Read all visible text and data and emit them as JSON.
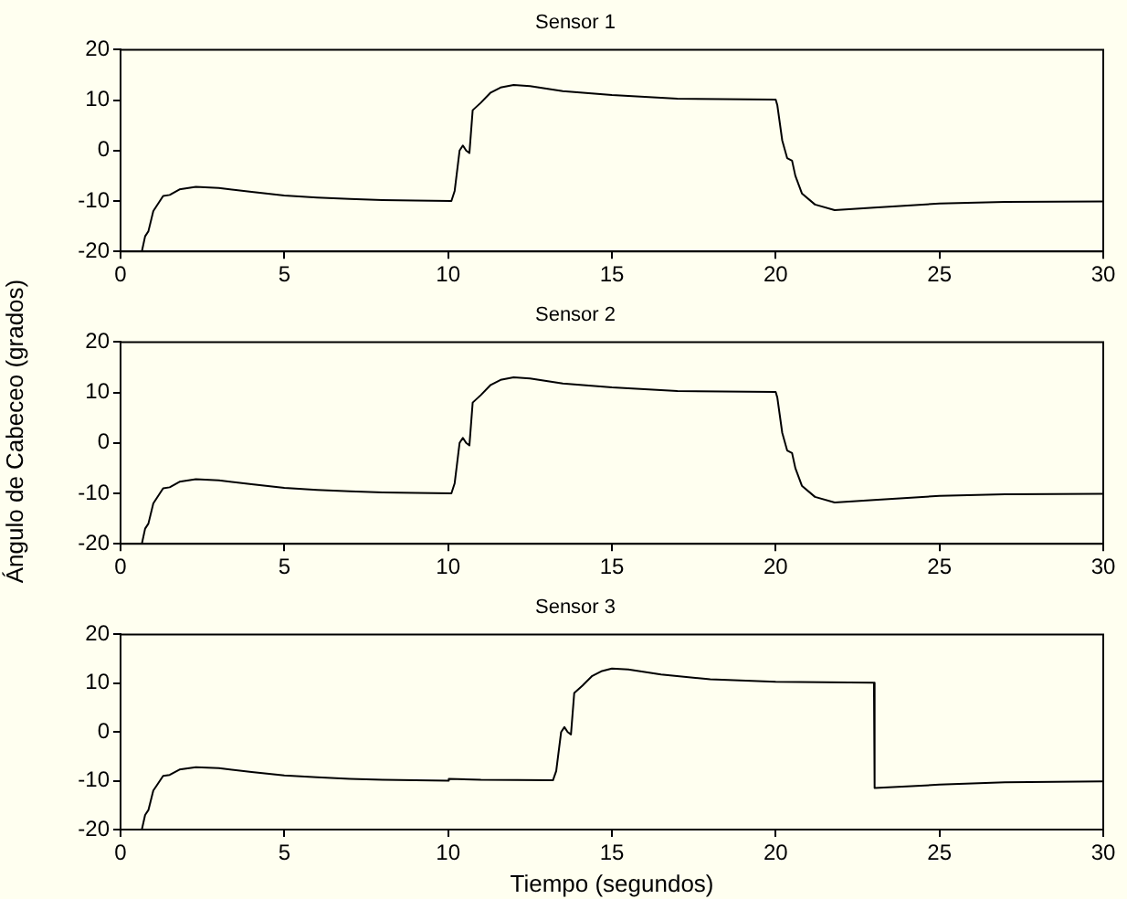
{
  "chart_data": [
    {
      "type": "line",
      "title": "Sensor 1",
      "xlim": [
        0,
        30
      ],
      "xticks": [
        0,
        5,
        10,
        15,
        20,
        25,
        30
      ],
      "ylim": [
        -20,
        20
      ],
      "yticks": [
        -20,
        -10,
        0,
        10,
        20
      ],
      "grid": false,
      "legend": false,
      "marker": "none",
      "line_style": "solid",
      "series": [
        {
          "color": "#000000",
          "x": [
            0.65,
            0.75,
            0.85,
            1.0,
            1.1,
            1.3,
            1.5,
            1.8,
            2.3,
            3,
            4,
            5,
            6,
            7,
            8,
            9,
            10.1,
            10.2,
            10.35,
            10.45,
            10.55,
            10.65,
            10.75,
            11,
            11.3,
            11.6,
            12,
            12.5,
            13.5,
            15,
            17,
            20,
            20.05,
            20.2,
            20.35,
            20.5,
            20.6,
            20.8,
            21.2,
            21.8,
            23,
            25,
            27,
            30
          ],
          "values": [
            -20,
            -17,
            -16,
            -12,
            -11,
            -9,
            -8.8,
            -7.7,
            -7.2,
            -7.4,
            -8.2,
            -8.9,
            -9.3,
            -9.6,
            -9.8,
            -9.9,
            -10,
            -8,
            0,
            1,
            0,
            -0.5,
            8,
            9.5,
            11.5,
            12.5,
            13,
            12.8,
            11.8,
            11,
            10.3,
            10.1,
            9,
            2,
            -1.5,
            -2,
            -5,
            -8.5,
            -10.7,
            -11.8,
            -11.3,
            -10.5,
            -10.2,
            -10.1
          ]
        }
      ]
    },
    {
      "type": "line",
      "title": "Sensor 2",
      "ylabel": "Ángulo de Cabeceo (grados)",
      "xlim": [
        0,
        30
      ],
      "xticks": [
        0,
        5,
        10,
        15,
        20,
        25,
        30
      ],
      "ylim": [
        -20,
        20
      ],
      "yticks": [
        -20,
        -10,
        0,
        10,
        20
      ],
      "grid": false,
      "legend": false,
      "marker": "none",
      "line_style": "solid",
      "series": [
        {
          "color": "#000000",
          "x": [
            0.65,
            0.75,
            0.85,
            1.0,
            1.1,
            1.3,
            1.5,
            1.8,
            2.3,
            3,
            4,
            5,
            6,
            7,
            8,
            9,
            10.1,
            10.2,
            10.35,
            10.45,
            10.55,
            10.65,
            10.75,
            11,
            11.3,
            11.6,
            12,
            12.5,
            13.5,
            15,
            17,
            20,
            20.05,
            20.2,
            20.35,
            20.5,
            20.6,
            20.8,
            21.2,
            21.8,
            23,
            25,
            27,
            30
          ],
          "values": [
            -20,
            -17,
            -16,
            -12,
            -11,
            -9,
            -8.8,
            -7.7,
            -7.2,
            -7.4,
            -8.2,
            -8.9,
            -9.3,
            -9.6,
            -9.8,
            -9.9,
            -10,
            -8,
            0,
            1,
            0,
            -0.5,
            8,
            9.5,
            11.5,
            12.5,
            13,
            12.8,
            11.8,
            11,
            10.3,
            10.1,
            9,
            2,
            -1.5,
            -2,
            -5,
            -8.5,
            -10.7,
            -11.8,
            -11.3,
            -10.5,
            -10.2,
            -10.1
          ]
        }
      ]
    },
    {
      "type": "line",
      "title": "Sensor 3",
      "xlabel": "Tiempo (segundos)",
      "xlim": [
        0,
        30
      ],
      "xticks": [
        0,
        5,
        10,
        15,
        20,
        25,
        30
      ],
      "ylim": [
        -20,
        20
      ],
      "yticks": [
        -20,
        -10,
        0,
        10,
        20
      ],
      "grid": false,
      "legend": false,
      "marker": "none",
      "line_style": "solid",
      "series": [
        {
          "color": "#000000",
          "x": [
            0.65,
            0.75,
            0.85,
            1.0,
            1.1,
            1.3,
            1.5,
            1.8,
            2.3,
            3,
            4,
            5,
            6,
            7,
            8,
            9,
            10,
            10.02,
            11,
            13.2,
            13.3,
            13.45,
            13.55,
            13.65,
            13.75,
            13.85,
            14.1,
            14.4,
            14.7,
            15,
            15.5,
            16.5,
            18,
            20,
            23,
            23.02,
            25,
            27,
            30
          ],
          "values": [
            -20,
            -17,
            -16,
            -12,
            -11,
            -9,
            -8.8,
            -7.7,
            -7.2,
            -7.4,
            -8.2,
            -8.9,
            -9.3,
            -9.6,
            -9.8,
            -9.9,
            -10,
            -9.6,
            -9.8,
            -9.9,
            -8,
            0,
            1,
            0,
            -0.5,
            8,
            9.5,
            11.5,
            12.5,
            13,
            12.8,
            11.8,
            10.8,
            10.3,
            10.1,
            -11.5,
            -10.8,
            -10.3,
            -10.1
          ]
        }
      ]
    }
  ]
}
